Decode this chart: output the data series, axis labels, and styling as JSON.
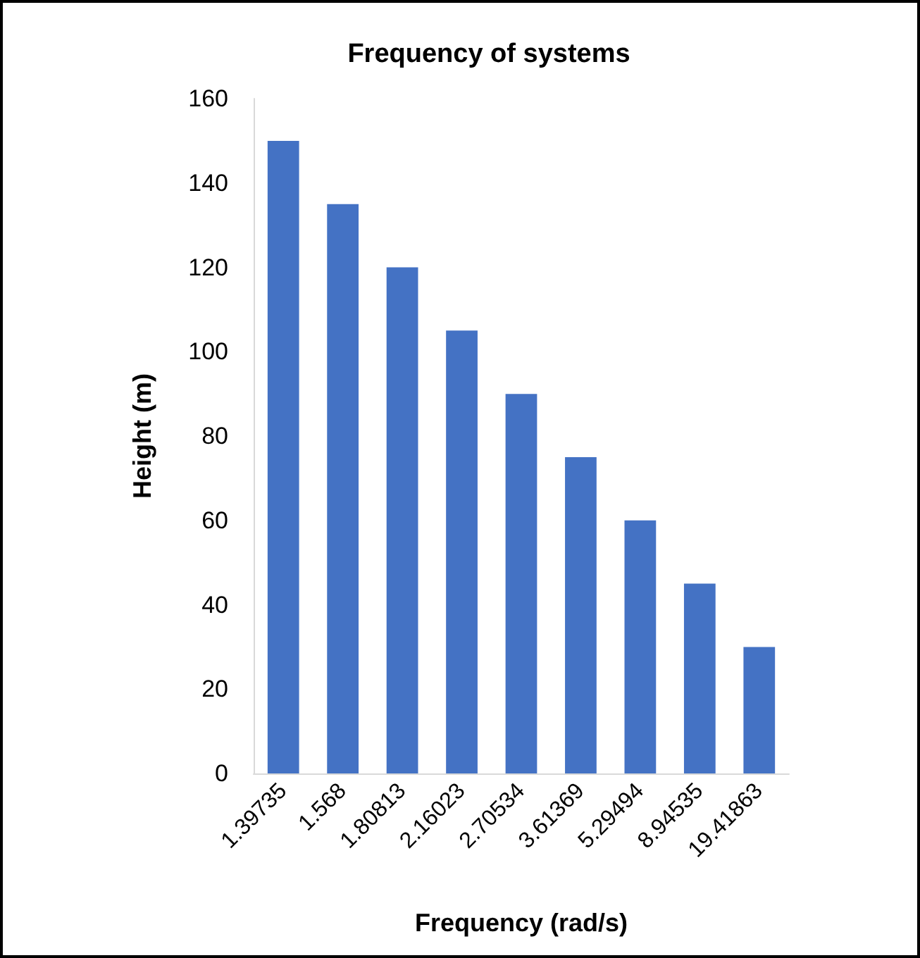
{
  "chart_data": {
    "type": "bar",
    "title": "Frequency of systems",
    "xlabel": "Frequency (rad/s)",
    "ylabel": "Height (m)",
    "categories": [
      "1.39735",
      "1.568",
      "1.80813",
      "2.16023",
      "2.70534",
      "3.61369",
      "5.29494",
      "8.94535",
      "19.41863"
    ],
    "values": [
      150,
      135,
      120,
      105,
      90,
      75,
      60,
      45,
      30
    ],
    "color": "#4472c4",
    "ylim": [
      0,
      160
    ],
    "yticks": [
      0,
      20,
      40,
      60,
      80,
      100,
      120,
      140,
      160
    ],
    "grid": false
  }
}
